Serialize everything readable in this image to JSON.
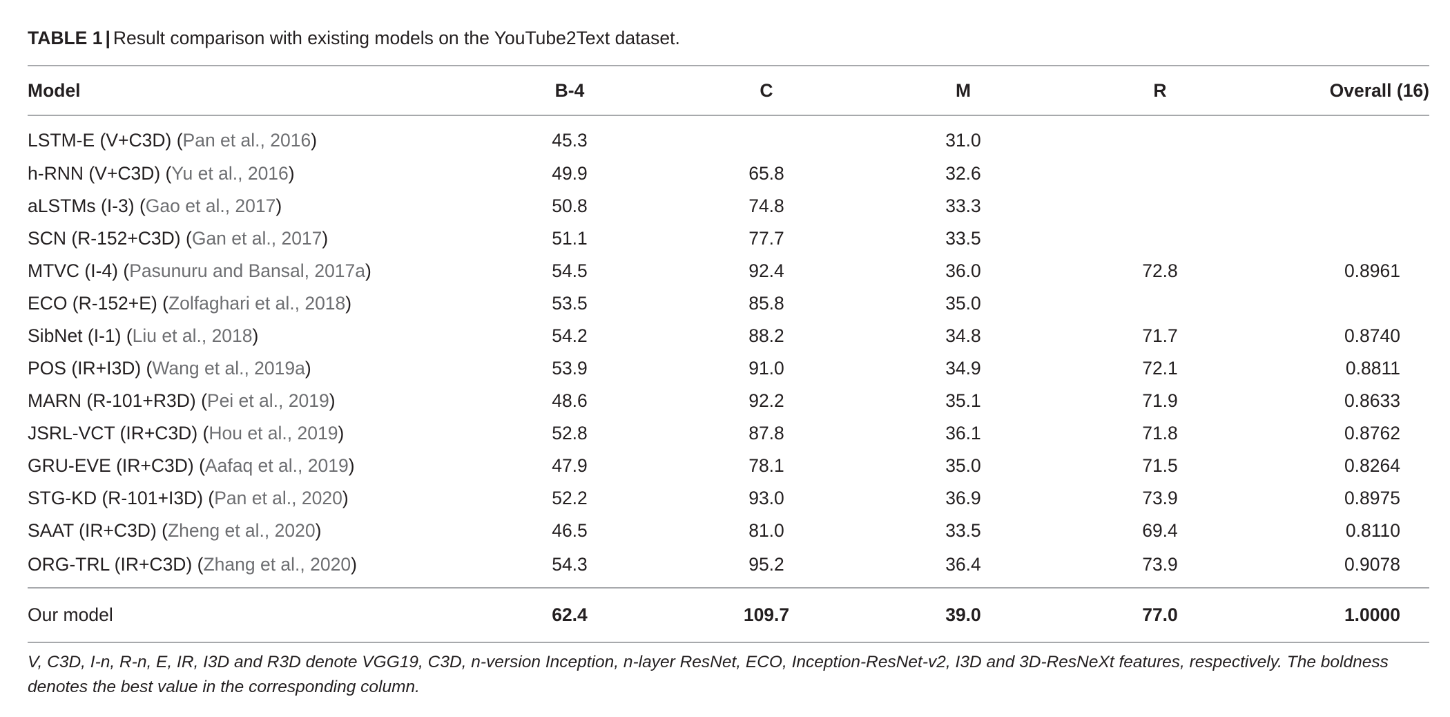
{
  "caption": {
    "label": "TABLE 1",
    "separator": "|",
    "text": "Result comparison with existing models on the YouTube2Text dataset."
  },
  "table": {
    "headers": [
      "Model",
      "B-4",
      "C",
      "M",
      "R",
      "Overall (16)"
    ],
    "rows": [
      {
        "name": "LSTM-E (V+C3D) (",
        "cite": "Pan et al., 2016",
        "close": ")",
        "b4": "45.3",
        "c": "",
        "m": "31.0",
        "r": "",
        "overall": ""
      },
      {
        "name": "h-RNN (V+C3D) (",
        "cite": "Yu et al., 2016",
        "close": ")",
        "b4": "49.9",
        "c": "65.8",
        "m": "32.6",
        "r": "",
        "overall": ""
      },
      {
        "name": "aLSTMs (I-3) (",
        "cite": "Gao et al., 2017",
        "close": ")",
        "b4": "50.8",
        "c": "74.8",
        "m": "33.3",
        "r": "",
        "overall": ""
      },
      {
        "name": "SCN (R-152+C3D) (",
        "cite": "Gan et al., 2017",
        "close": ")",
        "b4": "51.1",
        "c": "77.7",
        "m": "33.5",
        "r": "",
        "overall": ""
      },
      {
        "name": "MTVC (I-4) (",
        "cite": "Pasunuru and Bansal, 2017a",
        "close": ")",
        "b4": "54.5",
        "c": "92.4",
        "m": "36.0",
        "r": "72.8",
        "overall": "0.8961"
      },
      {
        "name": "ECO (R-152+E) (",
        "cite": "Zolfaghari et al., 2018",
        "close": ")",
        "b4": "53.5",
        "c": "85.8",
        "m": "35.0",
        "r": "",
        "overall": ""
      },
      {
        "name": "SibNet (I-1) (",
        "cite": "Liu et al., 2018",
        "close": ")",
        "b4": "54.2",
        "c": "88.2",
        "m": "34.8",
        "r": "71.7",
        "overall": "0.8740"
      },
      {
        "name": "POS (IR+I3D) (",
        "cite": "Wang et al., 2019a",
        "close": ")",
        "b4": "53.9",
        "c": "91.0",
        "m": "34.9",
        "r": "72.1",
        "overall": "0.8811"
      },
      {
        "name": "MARN (R-101+R3D) (",
        "cite": "Pei et al., 2019",
        "close": ")",
        "b4": "48.6",
        "c": "92.2",
        "m": "35.1",
        "r": "71.9",
        "overall": "0.8633"
      },
      {
        "name": "JSRL-VCT (IR+C3D) (",
        "cite": "Hou et al., 2019",
        "close": ")",
        "b4": "52.8",
        "c": "87.8",
        "m": "36.1",
        "r": "71.8",
        "overall": "0.8762"
      },
      {
        "name": "GRU-EVE (IR+C3D) (",
        "cite": "Aafaq et al., 2019",
        "close": ")",
        "b4": "47.9",
        "c": "78.1",
        "m": "35.0",
        "r": "71.5",
        "overall": "0.8264"
      },
      {
        "name": "STG-KD (R-101+I3D) (",
        "cite": "Pan et al., 2020",
        "close": ")",
        "b4": "52.2",
        "c": "93.0",
        "m": "36.9",
        "r": "73.9",
        "overall": "0.8975"
      },
      {
        "name": "SAAT (IR+C3D) (",
        "cite": "Zheng et al., 2020",
        "close": ")",
        "b4": "46.5",
        "c": "81.0",
        "m": "33.5",
        "r": "69.4",
        "overall": "0.8110"
      },
      {
        "name": "ORG-TRL (IR+C3D) (",
        "cite": "Zhang et al., 2020",
        "close": ")",
        "b4": "54.3",
        "c": "95.2",
        "m": "36.4",
        "r": "73.9",
        "overall": "0.9078"
      }
    ],
    "ours": {
      "name": "Our model",
      "b4": "62.4",
      "c": "109.7",
      "m": "39.0",
      "r": "77.0",
      "overall": "1.0000"
    }
  },
  "footnote": "V, C3D, I-n, R-n, E, IR, I3D and R3D denote VGG19, C3D, n-version Inception, n-layer ResNet, ECO, Inception-ResNet-v2, I3D and 3D-ResNeXt features, respectively. The boldness denotes the best value in the corresponding column."
}
